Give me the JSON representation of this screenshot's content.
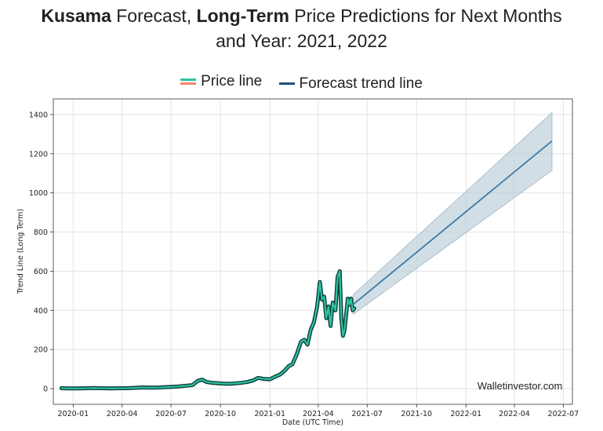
{
  "header": {
    "title_part1": "Kusama",
    "title_part2": " Forecast, ",
    "title_part3": "Long-Term",
    "title_part4": " Price Predictions for Next Months",
    "title_line2": "and Year: 2021, 2022"
  },
  "chart_data": {
    "type": "line",
    "xlabel": "Date (UTC Time)",
    "ylabel": "Trend Line (Long Term)",
    "xlim": [
      "2019-11-25",
      "2022-07-18"
    ],
    "ylim": [
      -80,
      1480
    ],
    "grid": true,
    "legend_position": "top",
    "watermark": "Walletinvestor.com",
    "x_ticks": [
      "2020-01",
      "2020-04",
      "2020-07",
      "2020-10",
      "2021-01",
      "2021-04",
      "2021-07",
      "2021-10",
      "2022-01",
      "2022-04",
      "2022-07"
    ],
    "y_ticks": [
      0,
      200,
      400,
      600,
      800,
      1000,
      1200,
      1400
    ],
    "series": [
      {
        "name": "Price line",
        "color": "#2ec4a0",
        "x": [
          "2019-12-10",
          "2019-12-25",
          "2020-01-10",
          "2020-01-25",
          "2020-02-10",
          "2020-02-25",
          "2020-03-10",
          "2020-03-25",
          "2020-04-10",
          "2020-04-25",
          "2020-05-10",
          "2020-05-25",
          "2020-06-10",
          "2020-06-25",
          "2020-07-10",
          "2020-07-25",
          "2020-08-10",
          "2020-08-20",
          "2020-08-28",
          "2020-09-05",
          "2020-09-15",
          "2020-09-25",
          "2020-10-10",
          "2020-10-25",
          "2020-11-10",
          "2020-11-20",
          "2020-12-01",
          "2020-12-10",
          "2020-12-20",
          "2021-01-01",
          "2021-01-10",
          "2021-01-20",
          "2021-01-28",
          "2021-02-05",
          "2021-02-12",
          "2021-02-20",
          "2021-02-28",
          "2021-03-06",
          "2021-03-12",
          "2021-03-18",
          "2021-03-24",
          "2021-03-30",
          "2021-04-04",
          "2021-04-08",
          "2021-04-12",
          "2021-04-16",
          "2021-04-20",
          "2021-04-24",
          "2021-04-28",
          "2021-05-03",
          "2021-05-07",
          "2021-05-11",
          "2021-05-14",
          "2021-05-17",
          "2021-05-20",
          "2021-05-23",
          "2021-05-26",
          "2021-05-29",
          "2021-06-01",
          "2021-06-04",
          "2021-06-07"
        ],
        "values": [
          2,
          1,
          1,
          2,
          3,
          2,
          1,
          2,
          2,
          4,
          6,
          5,
          6,
          8,
          10,
          14,
          18,
          40,
          46,
          34,
          30,
          28,
          25,
          26,
          30,
          34,
          42,
          55,
          50,
          48,
          60,
          72,
          90,
          115,
          125,
          175,
          240,
          250,
          225,
          300,
          340,
          420,
          545,
          455,
          470,
          360,
          420,
          320,
          440,
          400,
          570,
          600,
          360,
          270,
          300,
          380,
          460,
          430,
          460,
          400,
          410
        ]
      },
      {
        "name": "Forecast trend line",
        "color": "#3f7aa5",
        "x": [
          "2021-06-05",
          "2022-06-10"
        ],
        "values": [
          430,
          1265
        ],
        "band_upper": [
          480,
          1410
        ],
        "band_lower": [
          380,
          1115
        ]
      }
    ]
  },
  "colors": {
    "price_inner": "#2ec4a0",
    "price_outer": "#0b3d3a",
    "trend": "#3f7aa5",
    "band": "#b8ccd9",
    "grid": "#e3e3e3",
    "legend_price_secondary": "#ef8a6a",
    "legend_trend": "#1f4e79"
  }
}
